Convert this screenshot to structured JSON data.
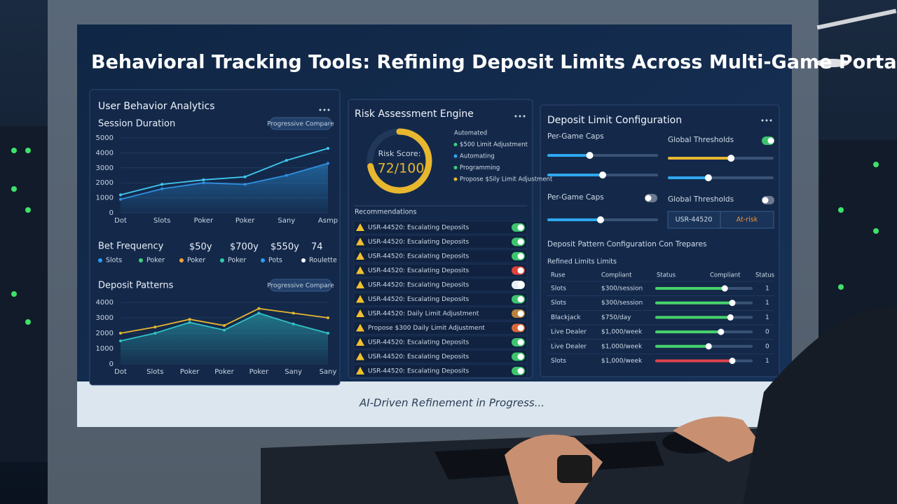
{
  "header": {
    "title": "Behavioral Tracking Tools: Refining Deposit Limits Across Multi-Game Portals"
  },
  "footer": {
    "status": "AI-Driven Refinement in Progress..."
  },
  "analytics": {
    "title": "User Behavior Analytics",
    "session_chart": {
      "type": "line",
      "title": "Session Duration",
      "badge": "Progressive Compare",
      "categories": [
        "Dot",
        "Slots",
        "Poker",
        "Poker",
        "Sany",
        "Asmp"
      ],
      "ylim": [
        0,
        5000
      ],
      "yticks": [
        0,
        1000,
        2000,
        3000,
        4000,
        5000
      ],
      "series": [
        {
          "color": "#3fc9ef",
          "values": [
            1200,
            1900,
            2200,
            2400,
            3500,
            4300
          ]
        },
        {
          "color": "#2f8fe0",
          "values": [
            900,
            1600,
            2000,
            1900,
            2500,
            3300
          ]
        }
      ]
    },
    "bet_frequency": {
      "title": "Bet Frequency",
      "stats": [
        "$50y",
        "$700y",
        "$550y",
        "74"
      ],
      "legend": [
        {
          "label": "Slots",
          "color": "#2a9df4"
        },
        {
          "label": "Poker",
          "color": "#3ed07a"
        },
        {
          "label": "Poker",
          "color": "#f0a53a"
        },
        {
          "label": "Poker",
          "color": "#34c8a8"
        },
        {
          "label": "Pots",
          "color": "#2a9df4"
        },
        {
          "label": "Roulette",
          "color": "#ffffff"
        }
      ]
    },
    "deposit_chart": {
      "type": "line",
      "title": "Deposit Patterns",
      "badge": "Progressive Compare",
      "categories": [
        "Dot",
        "Slots",
        "Poker",
        "Poker",
        "Poker",
        "Sany",
        "Sany"
      ],
      "ylim": [
        0,
        4000
      ],
      "yticks": [
        0,
        1000,
        2000,
        3000,
        4000
      ],
      "series": [
        {
          "color": "#e6b630",
          "values": [
            2000,
            2400,
            2900,
            2500,
            3600,
            3300,
            3000
          ]
        },
        {
          "color": "#2fc3c8",
          "values": [
            1500,
            2000,
            2700,
            2200,
            3300,
            2600,
            2000
          ]
        }
      ]
    }
  },
  "risk": {
    "title": "Risk Assessment Engine",
    "gauge": {
      "label": "Risk Score:",
      "value": 72,
      "max": 100,
      "text": "72/100",
      "color": "#e8b730"
    },
    "legend": [
      {
        "label": "Automated",
        "color": null
      },
      {
        "label": "$500 Limit Adjustment",
        "color": "#3ed07a"
      },
      {
        "label": "Automating",
        "color": "#2fa8f0"
      },
      {
        "label": "Programming",
        "color": "#3ed07a"
      },
      {
        "label": "Propose $Sily Limit Adjustment",
        "color": "#e8b730"
      }
    ],
    "recommendations": {
      "title": "Recommendations",
      "items": [
        {
          "text": "USR-44520: Escalating Deposits",
          "toggle": "#3ec46d"
        },
        {
          "text": "USR-44520: Escalating Deposits",
          "toggle": "#3ec46d"
        },
        {
          "text": "USR-44520: Escalating Deposits",
          "toggle": "#3ec46d"
        },
        {
          "text": "USR-44520: Escalating Deposits",
          "toggle": "#e0433b"
        },
        {
          "text": "USR-44520: Escalating Deposits",
          "toggle": "#e8eef5"
        },
        {
          "text": "USR-44520: Escalating Deposits",
          "toggle": "#3ec46d"
        },
        {
          "text": "USR-44520: Daily Limit Adjustment",
          "toggle": "#b9823a"
        },
        {
          "text": "Propose $300 Daily Limit Adjustment",
          "toggle": "#d9663a"
        },
        {
          "text": "USR-44520: Escalating Deposits",
          "toggle": "#3ec46d"
        },
        {
          "text": "USR-44520: Escalating Deposits",
          "toggle": "#3ec46d"
        },
        {
          "text": "USR-44520: Escalating Deposits",
          "toggle": "#3ec46d"
        }
      ]
    }
  },
  "config": {
    "title": "Deposit Limit Configuration",
    "caps_label": "Per-Game Caps",
    "global_label": "Global Thresholds",
    "sliders": [
      {
        "value": 38,
        "color": "#2fa8f0",
        "group": "left",
        "row": 0
      },
      {
        "value": 50,
        "color": "#2fa8f0",
        "group": "left",
        "row": 1
      },
      {
        "value": 60,
        "color": "#e8b730",
        "group": "right",
        "row": 0
      },
      {
        "value": 38,
        "color": "#2fa8f0",
        "group": "right",
        "row": 1
      }
    ],
    "caps_label_2": "Per-Game Caps",
    "global_label_2": "Global Thresholds",
    "slider_2": {
      "value": 48,
      "color": "#2fa8f0"
    },
    "user": {
      "id": "USR-44520",
      "status": "At-risk"
    },
    "pattern_title": "Deposit Pattern Configuration Con Trepares",
    "table": {
      "title": "Refined Limits Limits",
      "headers": [
        "Ruse",
        "Compliant",
        "Status",
        "Compliant",
        "Status"
      ],
      "rows": [
        {
          "game": "Slots",
          "limit": "$300/session",
          "progress": 72,
          "color": "#46d36a",
          "count": 1
        },
        {
          "game": "Slots",
          "limit": "$300/session",
          "progress": 80,
          "color": "#46d36a",
          "count": 1
        },
        {
          "game": "Blackjack",
          "limit": "$750/day",
          "progress": 78,
          "color": "#46d36a",
          "count": 1
        },
        {
          "game": "Live Dealer",
          "limit": "$1,000/week",
          "progress": 68,
          "color": "#46d36a",
          "count": 0
        },
        {
          "game": "Live Dealer",
          "limit": "$1,000/week",
          "progress": 55,
          "color": "#46d36a",
          "count": 0
        },
        {
          "game": "Slots",
          "limit": "$1,000/week",
          "progress": 80,
          "color": "#e0434b",
          "count": 1
        }
      ]
    }
  }
}
